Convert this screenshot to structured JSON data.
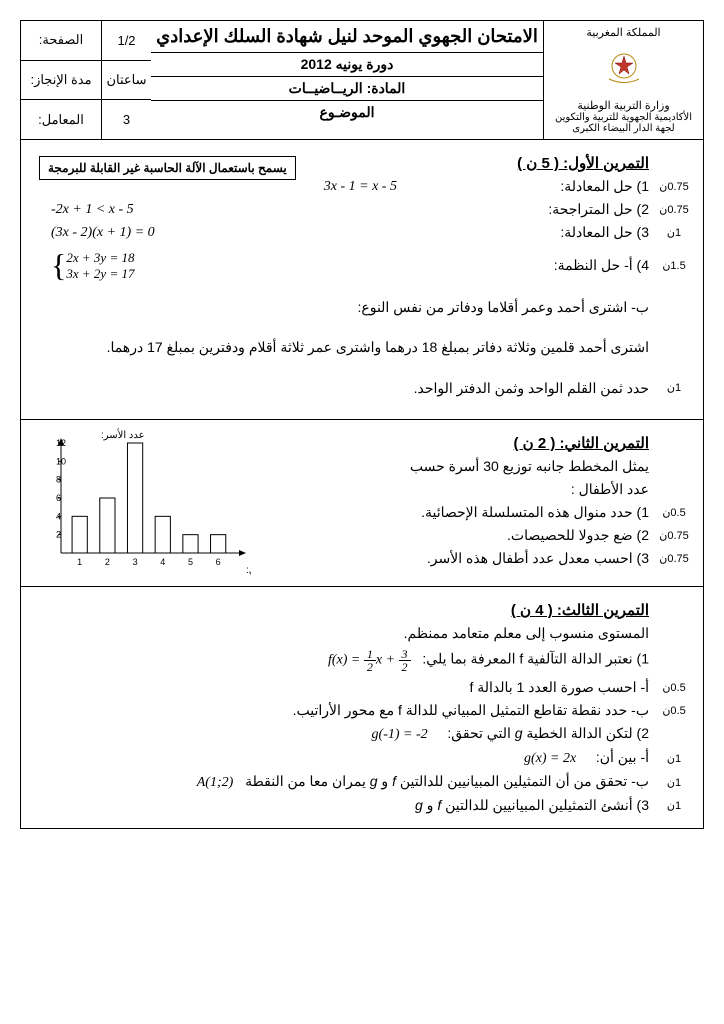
{
  "header": {
    "country": "المملكة المغربية",
    "ministry": "وزارة التربية الوطنية",
    "academy": "الأكاديمية الجهوية للتربية والتكوين",
    "region": "لجهة الدار البيضاء الكبرى",
    "exam_title": "الامتحان الجهوي الموحد لنيل شهادة السلك الإعدادي",
    "session": "دورة يونيه 2012",
    "subject_label": "المادة:",
    "subject": "الريــاضيــات",
    "topic": "الموضـوع",
    "page_label": "الصفحة:",
    "page": "1/2",
    "duration_label": "مدة الإنجاز:",
    "duration": "ساعتان",
    "coef_label": "المعامل:",
    "coef": "3"
  },
  "calc_note": "يسمح باستعمال الآلة الحاسبة غير القابلة للبرمجة",
  "ex1": {
    "title": "التمرين الأول:   ( 5 ن )",
    "q1": {
      "pts": "0.75ن",
      "label": "1) حل المعادلة:",
      "eq": "3x - 1 = x - 5"
    },
    "q2": {
      "pts": "0.75ن",
      "label": "2) حل المتراجحة:",
      "eq": "-2x + 1 < x - 5"
    },
    "q3": {
      "pts": "1ن",
      "label": "3) حل المعادلة:",
      "eq": "(3x - 2)(x + 1) = 0"
    },
    "q4": {
      "pts": "1.5ن",
      "label": "4) أ- حل النظمة:",
      "eq1": "2x + 3y = 18",
      "eq2": "3x + 2y = 17"
    },
    "word_b": "ب- اشترى أحمد وعمر أقلاما ودفاتر من نفس النوع:",
    "word_line": "اشترى أحمد قلمين وثلاثة دفاتر بمبلغ 18 درهما واشترى عمر ثلاثة أقلام ودفترين بمبلغ 17 درهما.",
    "word_q": "حدد ثمن القلم الواحد وثمن الدفتر الواحد.",
    "word_pts": "1ن"
  },
  "ex2": {
    "title": "التمرين الثاني:   ( 2 ن )",
    "intro1": "يمثل المخطط جانبه توزيع 30 أسرة حسب",
    "intro2": "عدد الأطفال :",
    "q1": {
      "pts": "0.5ن",
      "text": "1)   حدد منوال هذه المتسلسلة الإحصائية."
    },
    "q2": {
      "pts": "0.75ن",
      "text": "2)   ضع جدولا للحصيصات."
    },
    "q3": {
      "pts": "0.75ن",
      "text": "3)   احسب معدل عدد أطفال هذه الأسر."
    },
    "chart": {
      "x_label": "عدد الأطفال:",
      "y_label": "عدد الأسر:",
      "x_values": [
        "1",
        "2",
        "3",
        "4",
        "5",
        "6"
      ],
      "y_ticks": [
        "2",
        "4",
        "6",
        "8",
        "10",
        "12"
      ],
      "y_values": [
        4,
        6,
        12,
        4,
        2,
        2
      ],
      "bar_color": "#ffffff",
      "bar_stroke": "#000000",
      "axis_color": "#000000"
    }
  },
  "ex3": {
    "title": "التمرين الثالث:   ( 4 ن )",
    "intro": "المستوى منسوب إلى معلم متعامد ممنظم.",
    "q1": "1) نعتبر الدالة التآلفية f المعرفة بما يلي:",
    "q1_eq": "f(x) = ½x + 3/2",
    "q1a": {
      "pts": "0.5ن",
      "text": "أ- احسب صورة العدد 1 بالدالة f"
    },
    "q1b": {
      "pts": "0.5ن",
      "text": "ب- حدد نقطة تقاطع التمثيل المبياني للدالة f مع محور الأراتيب."
    },
    "q2": "2) لتكن الدالة الخطية g التي تحقق:   g(-1) = -2",
    "q2a": {
      "pts": "1ن",
      "text": "أ- بين أن:   g(x) = 2x"
    },
    "q2b": {
      "pts": "1ن",
      "text": "ب- تحقق من أن التمثيلين المبيانيين للدالتين f و g يمران معا من النقطة A(1;2)"
    },
    "q3": {
      "pts": "1ن",
      "text": "3) أنشئ التمثيلين المبيانيين للدالتين f و g"
    }
  }
}
